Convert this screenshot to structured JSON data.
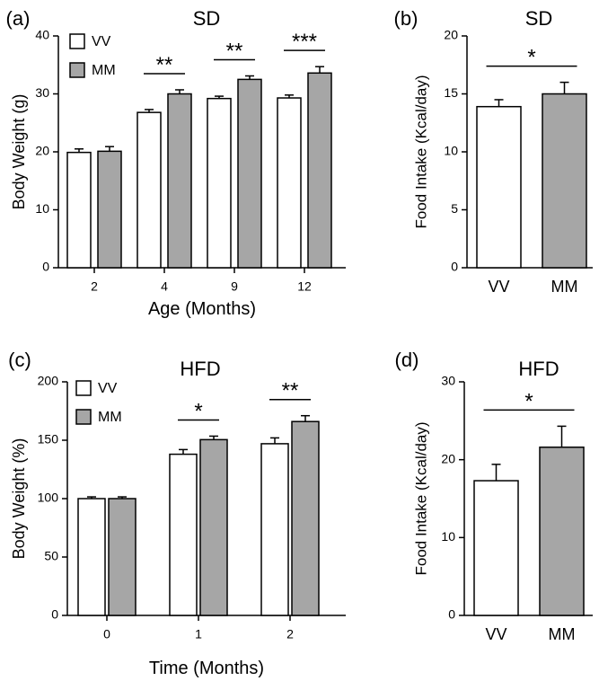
{
  "colors": {
    "VV": "#ffffff",
    "MM": "#a6a6a6",
    "outline": "#000000"
  },
  "chart_data": [
    {
      "panel": "(a)",
      "title": "SD",
      "type": "bar",
      "xlabel": "Age (Months)",
      "ylabel": "Body Weight (g)",
      "ylim": [
        0,
        40
      ],
      "yticks": [
        "0",
        "10",
        "20",
        "30",
        "40"
      ],
      "categories": [
        "2",
        "4",
        "9",
        "12"
      ],
      "legend": {
        "placement": "top-left"
      },
      "series": [
        {
          "name": "VV",
          "values": [
            19.9,
            26.8,
            29.2,
            29.3
          ],
          "errors": [
            0.6,
            0.5,
            0.4,
            0.5
          ]
        },
        {
          "name": "MM",
          "values": [
            20.1,
            30.0,
            32.5,
            33.6
          ],
          "errors": [
            0.8,
            0.7,
            0.6,
            1.1
          ]
        }
      ],
      "significance": [
        "",
        "**",
        "**",
        "***"
      ]
    },
    {
      "panel": "(b)",
      "title": "SD",
      "type": "bar",
      "xlabel": "",
      "ylabel": "Food Intake (Kcal/day)",
      "ylim": [
        0,
        20
      ],
      "yticks": [
        "0",
        "5",
        "10",
        "15",
        "20"
      ],
      "categories": [
        "VV",
        "MM"
      ],
      "values": [
        13.9,
        15.0
      ],
      "errors": [
        0.6,
        1.0
      ],
      "significance": "*"
    },
    {
      "panel": "(c)",
      "title": "HFD",
      "type": "bar",
      "xlabel": "Time (Months)",
      "ylabel": "Body Weight (%)",
      "ylim": [
        0,
        200
      ],
      "yticks": [
        "0",
        "50",
        "100",
        "150",
        "200"
      ],
      "categories": [
        "0",
        "1",
        "2"
      ],
      "legend": {
        "placement": "top-left"
      },
      "series": [
        {
          "name": "VV",
          "values": [
            100,
            138,
            147
          ],
          "errors": [
            1.5,
            4,
            5
          ]
        },
        {
          "name": "MM",
          "values": [
            100,
            150.5,
            166
          ],
          "errors": [
            1.5,
            3,
            5
          ]
        }
      ],
      "significance": [
        "",
        "*",
        "**"
      ]
    },
    {
      "panel": "(d)",
      "title": "HFD",
      "type": "bar",
      "xlabel": "",
      "ylabel": "Food Intake (Kcal/day)",
      "ylim": [
        0,
        30
      ],
      "yticks": [
        "0",
        "10",
        "20",
        "30"
      ],
      "categories": [
        "VV",
        "MM"
      ],
      "values": [
        17.3,
        21.6
      ],
      "errors": [
        2.1,
        2.7
      ],
      "significance": "*"
    }
  ]
}
